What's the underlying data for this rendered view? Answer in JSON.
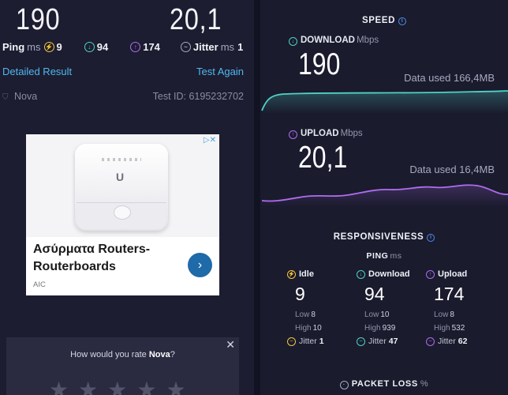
{
  "summary": {
    "download": "190",
    "upload": "20,1",
    "ping_label": "Ping",
    "ping_unit": "ms",
    "ping_idle": "9",
    "ping_download": "94",
    "ping_upload": "174",
    "jitter_label": "Jitter",
    "jitter_unit": "ms",
    "jitter": "1",
    "detailed_link": "Detailed Result",
    "test_again_link": "Test Again",
    "provider": "Nova",
    "test_id": "Test ID: 6195232702"
  },
  "ad": {
    "title": "Ασύρματα Routers-Routerboards",
    "advertiser": "AIC",
    "corner": "▷✕",
    "arrow": "›",
    "logo": "U"
  },
  "rating": {
    "question_prefix": "How would you rate ",
    "provider": "Nova",
    "question_suffix": "?",
    "close": "✕",
    "stars": [
      "★",
      "★",
      "★",
      "★",
      "★"
    ]
  },
  "speed": {
    "section_title": "SPEED",
    "download": {
      "label": "DOWNLOAD",
      "unit": "Mbps",
      "value": "190",
      "data_used": "Data used 166,4MB",
      "color": "#4fd1c5"
    },
    "upload": {
      "label": "UPLOAD",
      "unit": "Mbps",
      "value": "20,1",
      "data_used": "Data used 16,4MB",
      "color": "#b06cf0"
    }
  },
  "responsiveness": {
    "section_title": "RESPONSIVENESS",
    "ping_label": "PING",
    "ping_unit": "ms",
    "columns": [
      {
        "label": "Idle",
        "value": "9",
        "low_label": "Low",
        "low": "8",
        "high_label": "High",
        "high": "10",
        "jitter_label": "Jitter",
        "jitter": "1",
        "color": "#f4c542"
      },
      {
        "label": "Download",
        "value": "94",
        "low_label": "Low",
        "low": "10",
        "high_label": "High",
        "high": "939",
        "jitter_label": "Jitter",
        "jitter": "47",
        "color": "#4fd1c5"
      },
      {
        "label": "Upload",
        "value": "174",
        "low_label": "Low",
        "low": "8",
        "high_label": "High",
        "high": "532",
        "jitter_label": "Jitter",
        "jitter": "62",
        "color": "#b06cf0"
      }
    ],
    "packet_loss_label": "PACKET LOSS",
    "packet_loss_unit": "%"
  }
}
